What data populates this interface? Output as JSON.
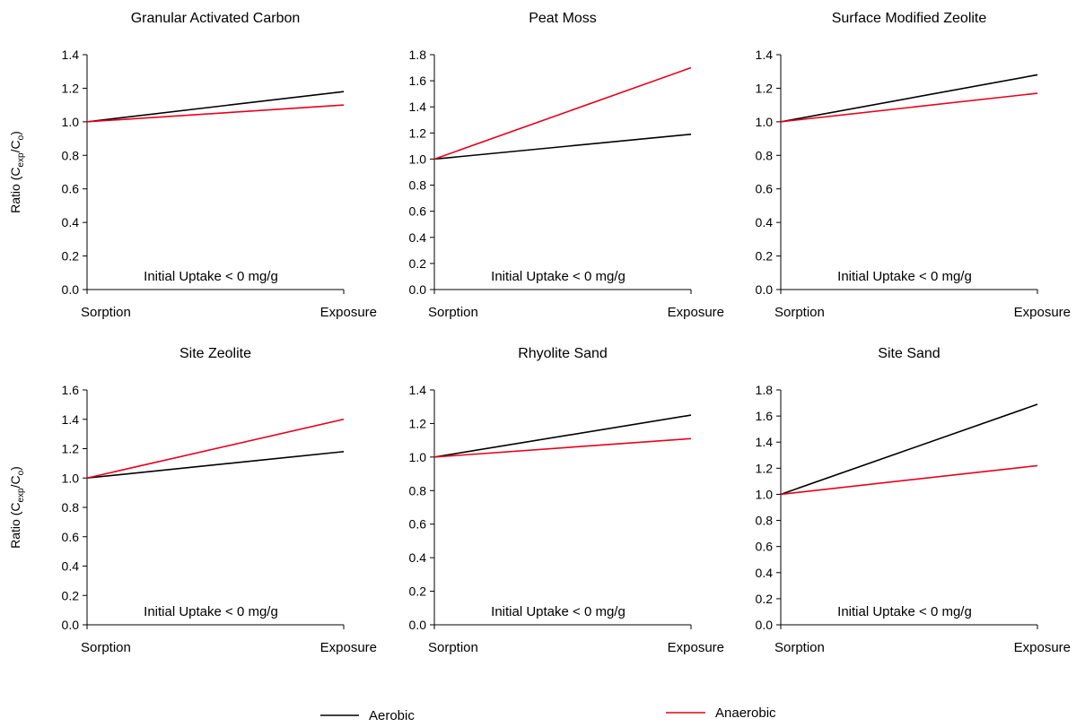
{
  "chart_data": [
    {
      "type": "line",
      "title": "Granular Activated Carbon",
      "categories": [
        "Sorption",
        "Exposure"
      ],
      "ylabel": "Ratio (Cexp/Co)",
      "ylim": [
        0,
        1.4
      ],
      "yticks": [
        "0.0",
        "0.2",
        "0.4",
        "0.6",
        "0.8",
        "1.0",
        "1.2",
        "1.4"
      ],
      "annotation": "Initial Uptake < 0 mg/g",
      "series": [
        {
          "name": "Aerobic",
          "values": [
            1.0,
            1.18
          ]
        },
        {
          "name": "Anaerobic",
          "values": [
            1.0,
            1.1
          ]
        }
      ]
    },
    {
      "type": "line",
      "title": "Peat Moss",
      "categories": [
        "Sorption",
        "Exposure"
      ],
      "ylabel": "",
      "ylim": [
        0,
        1.8
      ],
      "yticks": [
        "0.0",
        "0.2",
        "0.4",
        "0.6",
        "0.8",
        "1.0",
        "1.2",
        "1.4",
        "1.6",
        "1.8"
      ],
      "annotation": "Initial Uptake < 0 mg/g",
      "series": [
        {
          "name": "Aerobic",
          "values": [
            1.0,
            1.19
          ]
        },
        {
          "name": "Anaerobic",
          "values": [
            1.0,
            1.7
          ]
        }
      ]
    },
    {
      "type": "line",
      "title": "Surface Modified Zeolite",
      "categories": [
        "Sorption",
        "Exposure"
      ],
      "ylabel": "",
      "ylim": [
        0,
        1.4
      ],
      "yticks": [
        "0.0",
        "0.2",
        "0.4",
        "0.6",
        "0.8",
        "1.0",
        "1.2",
        "1.4"
      ],
      "annotation": "Initial Uptake < 0 mg/g",
      "series": [
        {
          "name": "Aerobic",
          "values": [
            1.0,
            1.28
          ]
        },
        {
          "name": "Anaerobic",
          "values": [
            1.0,
            1.17
          ]
        }
      ]
    },
    {
      "type": "line",
      "title": "Site Zeolite",
      "categories": [
        "Sorption",
        "Exposure"
      ],
      "ylabel": "Ratio (Cexp/Co)",
      "ylim": [
        0,
        1.6
      ],
      "yticks": [
        "0.0",
        "0.2",
        "0.4",
        "0.6",
        "0.8",
        "1.0",
        "1.2",
        "1.4",
        "1.6"
      ],
      "annotation": "Initial Uptake < 0 mg/g",
      "series": [
        {
          "name": "Aerobic",
          "values": [
            1.0,
            1.18
          ]
        },
        {
          "name": "Anaerobic",
          "values": [
            1.0,
            1.4
          ]
        }
      ]
    },
    {
      "type": "line",
      "title": "Rhyolite Sand",
      "categories": [
        "Sorption",
        "Exposure"
      ],
      "ylabel": "",
      "ylim": [
        0,
        1.4
      ],
      "yticks": [
        "0.0",
        "0.2",
        "0.4",
        "0.6",
        "0.8",
        "1.0",
        "1.2",
        "1.4"
      ],
      "annotation": "Initial Uptake < 0 mg/g",
      "series": [
        {
          "name": "Aerobic",
          "values": [
            1.0,
            1.25
          ]
        },
        {
          "name": "Anaerobic",
          "values": [
            1.0,
            1.11
          ]
        }
      ]
    },
    {
      "type": "line",
      "title": "Site Sand",
      "categories": [
        "Sorption",
        "Exposure"
      ],
      "ylabel": "",
      "ylim": [
        0,
        1.8
      ],
      "yticks": [
        "0.0",
        "0.2",
        "0.4",
        "0.6",
        "0.8",
        "1.0",
        "1.2",
        "1.4",
        "1.6",
        "1.8"
      ],
      "annotation": "Initial Uptake < 0 mg/g",
      "series": [
        {
          "name": "Aerobic",
          "values": [
            1.0,
            1.69
          ]
        },
        {
          "name": "Anaerobic",
          "values": [
            1.0,
            1.22
          ]
        }
      ]
    }
  ],
  "legend": {
    "placement": "bottom",
    "entries": [
      {
        "name": "Aerobic",
        "color": "#000000"
      },
      {
        "name": "Anaerobic",
        "color": "#e8001c"
      }
    ]
  },
  "colors": {
    "Aerobic": "#000000",
    "Anaerobic": "#e8001c",
    "axis": "#000000"
  }
}
